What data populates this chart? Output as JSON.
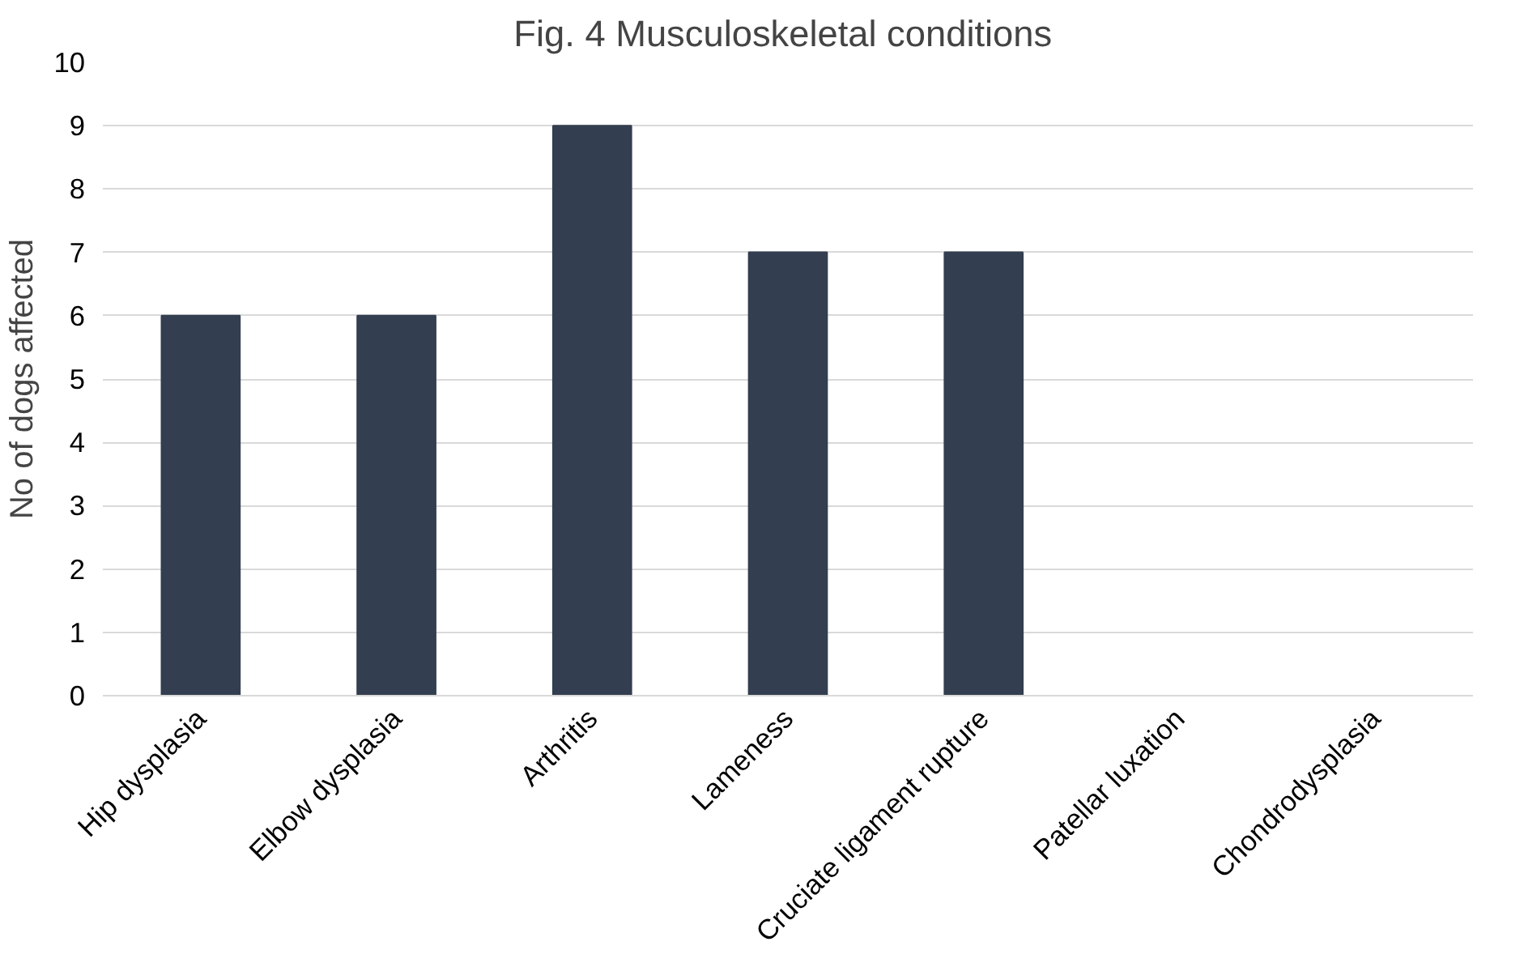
{
  "chart_data": {
    "type": "bar",
    "title": "Fig. 4  Musculoskeletal conditions",
    "ylabel": "No of dogs affected",
    "categories": [
      "Hip dysplasia",
      "Elbow dysplasia",
      "Arthritis",
      "Lameness",
      "Cruciate ligament rupture",
      "Patellar luxation",
      "Chondrodysplasia"
    ],
    "values": [
      6,
      6,
      9,
      7,
      7,
      0,
      0
    ],
    "color": "#333f50",
    "ylim": [
      0,
      10
    ],
    "yticks": [
      0,
      1,
      2,
      3,
      4,
      5,
      6,
      7,
      8,
      9,
      10
    ],
    "grid": "y"
  }
}
